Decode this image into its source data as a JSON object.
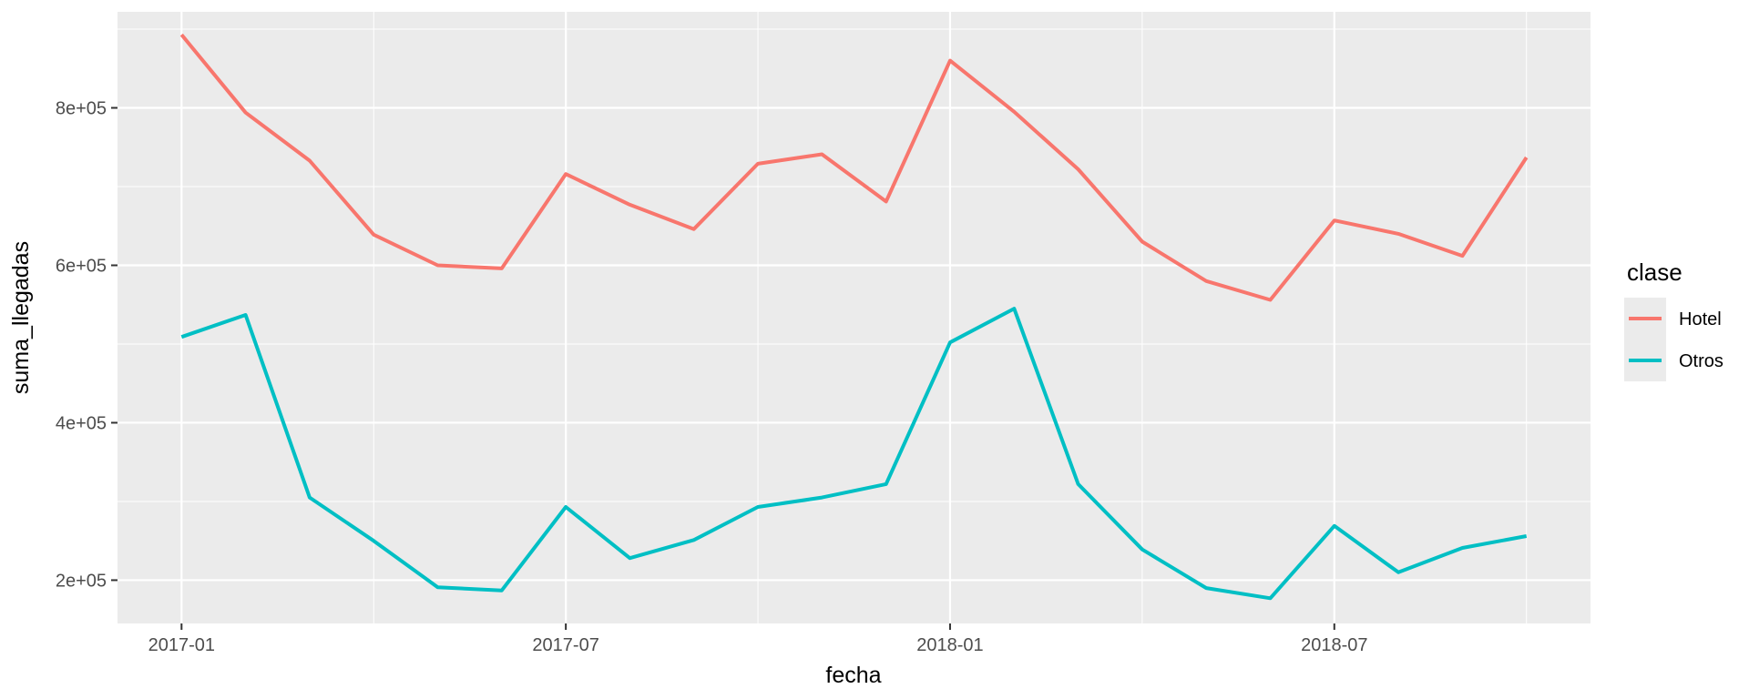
{
  "chart_data": {
    "type": "line",
    "xlabel": "fecha",
    "ylabel": "suma_llegadas",
    "x_ticks": [
      "2017-01",
      "2017-07",
      "2018-01",
      "2018-07"
    ],
    "y_ticks": [
      {
        "value": 200000,
        "label": "2e+05"
      },
      {
        "value": 400000,
        "label": "4e+05"
      },
      {
        "value": 600000,
        "label": "6e+05"
      },
      {
        "value": 800000,
        "label": "8e+05"
      }
    ],
    "ylim": [
      145000,
      922000
    ],
    "xlim": [
      "2016-12",
      "2018-11"
    ],
    "grid": true,
    "legend": {
      "title": "clase",
      "position": "right"
    },
    "x": [
      "2017-01",
      "2017-02",
      "2017-03",
      "2017-04",
      "2017-05",
      "2017-06",
      "2017-07",
      "2017-08",
      "2017-09",
      "2017-10",
      "2017-11",
      "2017-12",
      "2018-01",
      "2018-02",
      "2018-03",
      "2018-04",
      "2018-05",
      "2018-06",
      "2018-07",
      "2018-08",
      "2018-09",
      "2018-10"
    ],
    "series": [
      {
        "name": "Hotel",
        "color": "#F8766D",
        "values": [
          893000,
          794000,
          733000,
          639000,
          600000,
          596000,
          716000,
          677000,
          646000,
          729000,
          741000,
          681000,
          860000,
          795000,
          722000,
          630000,
          580000,
          556000,
          657000,
          640000,
          612000,
          737000
        ]
      },
      {
        "name": "Otros",
        "color": "#00BFC4",
        "values": [
          509000,
          537000,
          305000,
          250000,
          191000,
          187000,
          293000,
          228000,
          251000,
          293000,
          305000,
          322000,
          502000,
          545000,
          322000,
          239000,
          190000,
          177000,
          269000,
          210000,
          241000,
          256000
        ]
      }
    ]
  }
}
